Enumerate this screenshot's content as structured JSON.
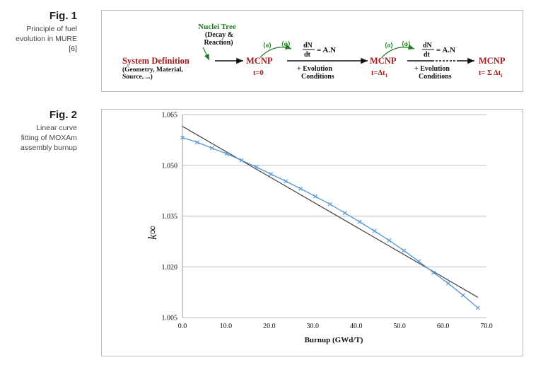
{
  "fig1": {
    "label": "Fig. 1",
    "caption": [
      "Principle of fuel",
      "evolution in MURE",
      "[6]"
    ],
    "diagram": {
      "nuclei_tree": [
        "Nuclei Tree",
        "(Decay &",
        "Reaction)"
      ],
      "system_definition": "System Definition",
      "system_definition_detail": [
        "(Geometry, Material,",
        "Source, ...)"
      ],
      "mcnp_label": "MCNP",
      "t0": "t=0",
      "t1": "t=Δt",
      "t1_sub": "1",
      "tsum": "t= Σ Δt",
      "tsum_sub": "i",
      "sigma": "⟨σ⟩",
      "phi": "⟨ϕ⟩",
      "dn": "dN",
      "dt": "dt",
      "eq_rhs": "= A.N",
      "evolution": [
        "+ Evolution",
        "Conditions"
      ],
      "colors": {
        "red": "#a31818",
        "green": "#1f7a1f",
        "black": "#111111"
      }
    }
  },
  "fig2": {
    "label": "Fig. 2",
    "caption": [
      "Linear curve",
      "fitting of MOXAm",
      "assembly burnup"
    ]
  },
  "chart_data": {
    "type": "line",
    "title": "",
    "xlabel": "Burnup (GWd/T)",
    "ylabel": "k∞",
    "xlim": [
      0,
      70
    ],
    "ylim": [
      1.005,
      1.065
    ],
    "x_ticks": [
      "0.0",
      "10.0",
      "20.0",
      "30.0",
      "40.0",
      "50.0",
      "60.0",
      "70.0"
    ],
    "y_ticks": [
      "1.005",
      "1.020",
      "1.035",
      "1.050",
      "1.065"
    ],
    "grid": "horizontal",
    "series": [
      {
        "marker": "x",
        "color": "#5b9bd5",
        "x": [
          0,
          3.4,
          6.8,
          10.2,
          13.6,
          17,
          20.4,
          23.8,
          27.2,
          30.6,
          34,
          37.4,
          40.8,
          44.2,
          47.6,
          51,
          54.4,
          57.8,
          61.2,
          64.6,
          68
        ],
        "y": [
          1.0582,
          1.0568,
          1.0551,
          1.0534,
          1.0515,
          1.0495,
          1.0474,
          1.0453,
          1.0431,
          1.0408,
          1.0385,
          1.0359,
          1.0333,
          1.0306,
          1.0278,
          1.0248,
          1.0216,
          1.0183,
          1.0151,
          1.0116,
          1.0079
        ]
      },
      {
        "marker": "none",
        "color": "#444444",
        "x": [
          0,
          68
        ],
        "y": [
          1.0615,
          1.011
        ]
      }
    ]
  }
}
